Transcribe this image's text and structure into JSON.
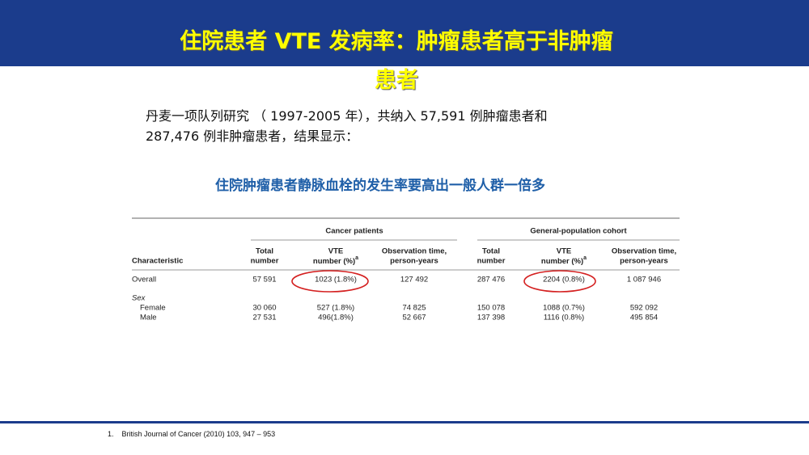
{
  "header": {
    "title": "住院患者 VTE 发病率：肿瘤患者高于非肿瘤患者"
  },
  "intro": [
    "丹麦一项队列研究 （ 1997-2005 年），共纳入 57,591 例肿瘤患者和",
    "287,476 例非肿瘤患者，结果显示："
  ],
  "highlight": "住院肿瘤患者静脉血栓的发生率要高出一般人群一倍多",
  "table": {
    "groups": [
      "Cancer patients",
      "General-population cohort"
    ],
    "columns": [
      {
        "lines": [
          "Characteristic"
        ]
      },
      {
        "lines": [
          "Total",
          "number"
        ]
      },
      {
        "lines": [
          "VTE",
          "number (%)"
        ],
        "note": "a"
      },
      {
        "lines": [
          "Observation time,",
          "person-years"
        ]
      },
      {
        "lines": [
          "Total",
          "number"
        ]
      },
      {
        "lines": [
          "VTE",
          "number (%)"
        ],
        "note": "a"
      },
      {
        "lines": [
          "Observation time,",
          "person-years"
        ]
      }
    ],
    "rows": [
      {
        "cells": [
          "Overall",
          "57 591",
          "1023 (1.8%)",
          "127 492",
          "287 476",
          "2204 (0.8%)",
          "1 087 946"
        ]
      },
      {
        "cells": [
          "Sex"
        ]
      },
      {
        "cells": [
          "Female",
          "30 060",
          "527 (1.8%)",
          "74 825",
          "150 078",
          "1088 (0.7%)",
          "592 092"
        ]
      },
      {
        "cells": [
          "Male",
          "27 531",
          "496(1.8%)",
          "52 667",
          "137 398",
          "1116 (0.8%)",
          "495 854"
        ]
      }
    ]
  },
  "footnote": {
    "number": "1.",
    "text": "British Journal of Cancer (2010) 103, 947 – 953"
  }
}
